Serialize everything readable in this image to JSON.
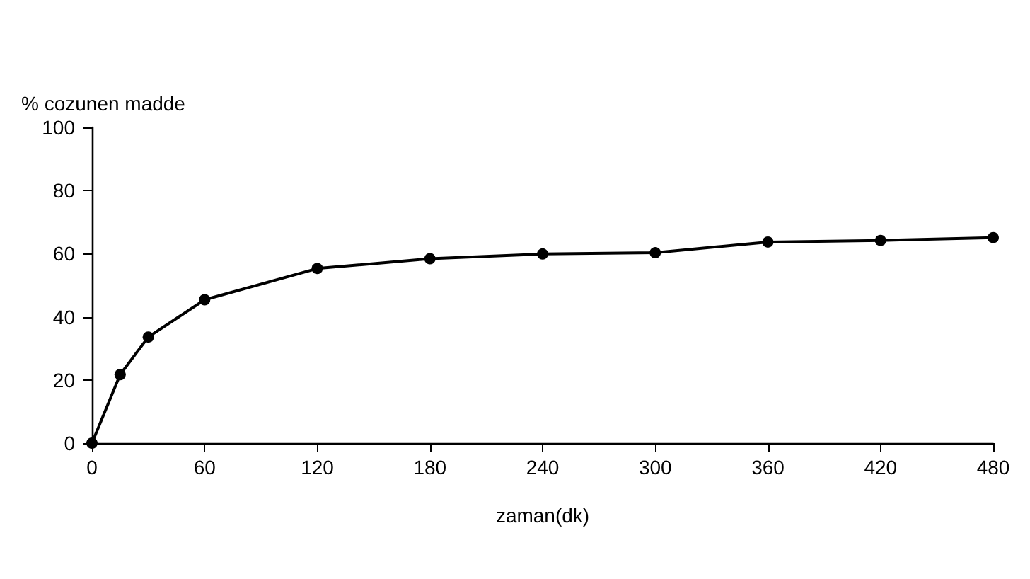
{
  "chart_data": {
    "type": "line",
    "xlabel": "zaman(dk)",
    "ylabel": "% cozunen madde",
    "x": [
      0,
      15,
      30,
      60,
      120,
      180,
      240,
      300,
      360,
      420,
      480
    ],
    "values": [
      0,
      21.7,
      33.6,
      45.4,
      55.3,
      58.4,
      59.9,
      60.3,
      63.7,
      64.2,
      65.1
    ],
    "color": "#000000",
    "marker": "circle",
    "line_style": "solid",
    "grid": false,
    "xlim": [
      0,
      480
    ],
    "xticks": [
      0,
      60,
      120,
      180,
      240,
      300,
      360,
      420,
      480
    ],
    "ylim": [
      0,
      100
    ],
    "yticks": [
      0,
      20,
      40,
      60,
      80,
      100
    ]
  }
}
